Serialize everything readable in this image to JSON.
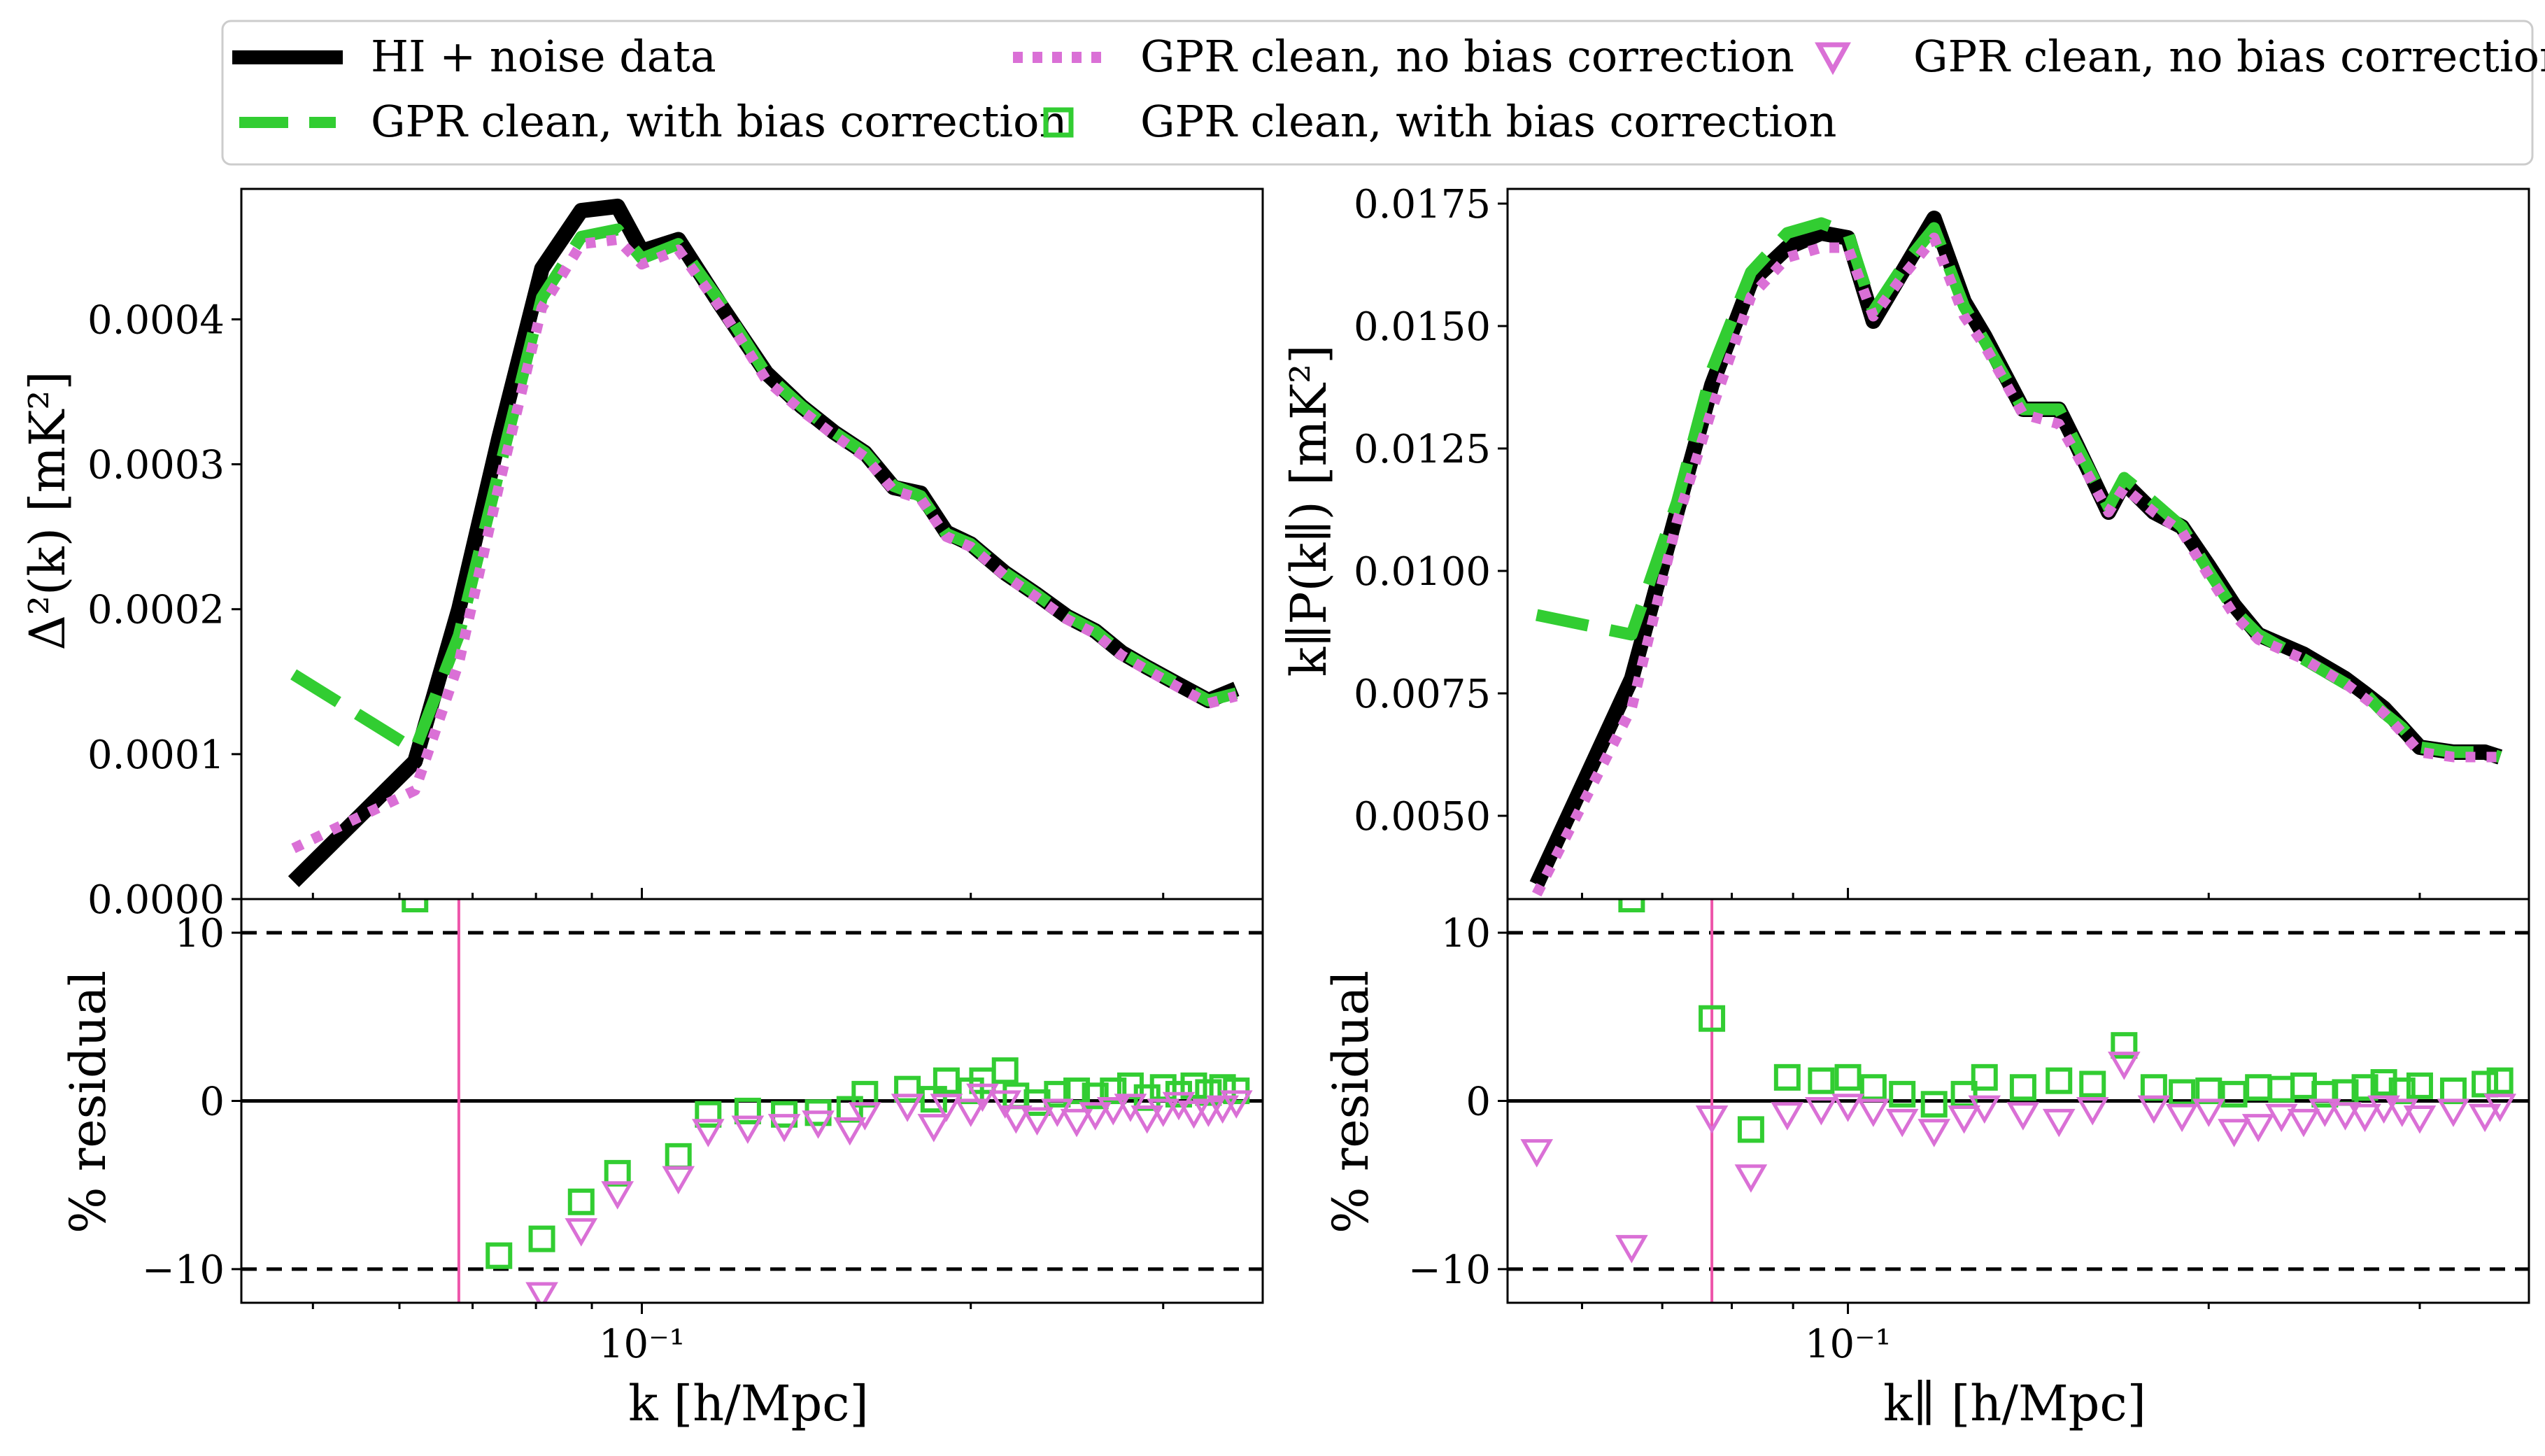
{
  "legend": {
    "entries": [
      {
        "label": "HI + noise data",
        "style": "line-solid",
        "color": "#000000"
      },
      {
        "label": "GPR clean, with bias correction",
        "style": "line-dashed",
        "color": "#32cd32"
      },
      {
        "label": "GPR clean, no bias correction",
        "style": "line-dotted",
        "color": "#da70d6"
      },
      {
        "label": "GPR clean, with bias correction",
        "style": "marker-square",
        "color": "#32cd32"
      },
      {
        "label": "GPR clean, no bias correction",
        "style": "marker-triangle-down",
        "color": "#da70d6"
      }
    ]
  },
  "colors": {
    "data": "#000000",
    "with_bias": "#32cd32",
    "no_bias": "#da70d6",
    "vline": "#ee55aa"
  },
  "chart_data": [
    {
      "type": "line",
      "panel": "left",
      "xlabel": "k [h/Mpc]",
      "ylabel": "Δ²(k) [mK²]",
      "residual_ylabel": "% residual",
      "xscale": "log",
      "xlim": [
        0.043,
        0.37
      ],
      "ylim": [
        0,
        0.00049
      ],
      "residual_ylim": [
        -12,
        12
      ],
      "xtick_labels": [
        {
          "value": 0.1,
          "label": "10⁻¹"
        }
      ],
      "ytick_labels": [
        "0.0000",
        "0.0001",
        "0.0002",
        "0.0003",
        "0.0004"
      ],
      "residual_ytick_labels": [
        "−10",
        "0",
        "10"
      ],
      "residual_reference_lines": [
        -10,
        0,
        10
      ],
      "vline_x": 0.068,
      "x": [
        0.048,
        0.062,
        0.068,
        0.074,
        0.081,
        0.088,
        0.095,
        0.1,
        0.108,
        0.118,
        0.13,
        0.14,
        0.15,
        0.16,
        0.17,
        0.18,
        0.19,
        0.2,
        0.215,
        0.23,
        0.245,
        0.26,
        0.275,
        0.29,
        0.31,
        0.33,
        0.35
      ],
      "series": [
        {
          "name": "HI + noise data",
          "values": [
            1.2e-05,
            9.5e-05,
            0.0002,
            0.000318,
            0.000435,
            0.000475,
            0.000478,
            0.000447,
            0.000455,
            0.00041,
            0.000363,
            0.00034,
            0.000322,
            0.000308,
            0.000284,
            0.00028,
            0.000253,
            0.000245,
            0.000225,
            0.00021,
            0.000195,
            0.000185,
            0.00017,
            0.00016,
            0.000148,
            0.000137,
            0.000145
          ]
        },
        {
          "name": "GPR clean, with bias correction",
          "values": [
            0.000155,
            0.000103,
            0.000182,
            0.000295,
            0.000415,
            0.000457,
            0.000462,
            0.000442,
            0.000452,
            0.000412,
            0.000362,
            0.00034,
            0.000322,
            0.000308,
            0.000285,
            0.000278,
            0.000252,
            0.000245,
            0.000225,
            0.00021,
            0.000195,
            0.000185,
            0.00017,
            0.00016,
            0.000148,
            0.000137,
            0.000142
          ]
        },
        {
          "name": "GPR clean, no bias correction",
          "values": [
            3.5e-05,
            7.5e-05,
            0.000163,
            0.000285,
            0.000408,
            0.000452,
            0.000455,
            0.000438,
            0.000448,
            0.000408,
            0.000358,
            0.000337,
            0.00032,
            0.000305,
            0.000282,
            0.000276,
            0.00025,
            0.000243,
            0.000223,
            0.000208,
            0.000193,
            0.000183,
            0.000168,
            0.000158,
            0.000146,
            0.000135,
            0.00014
          ]
        }
      ],
      "residual_series": [
        {
          "name": "GPR clean, with bias correction",
          "marker": "square",
          "x": [
            0.062,
            0.074,
            0.081,
            0.088,
            0.095,
            0.108,
            0.115,
            0.125,
            0.135,
            0.145,
            0.155,
            0.16,
            0.175,
            0.185,
            0.19,
            0.2,
            0.205,
            0.215,
            0.22,
            0.23,
            0.24,
            0.25,
            0.26,
            0.27,
            0.28,
            0.29,
            0.3,
            0.31,
            0.32,
            0.33,
            0.34,
            0.35
          ],
          "values": [
            12,
            -9.2,
            -8.2,
            -6,
            -4.3,
            -3.3,
            -0.8,
            -0.6,
            -0.8,
            -0.7,
            -0.5,
            0.4,
            0.7,
            0.1,
            1.2,
            0.6,
            1.2,
            1.8,
            0.3,
            -0.1,
            0.4,
            0.6,
            0.3,
            0.6,
            0.9,
            0.2,
            0.8,
            0.4,
            0.9,
            0.5,
            0.8,
            0.6
          ]
        },
        {
          "name": "GPR clean, no bias correction",
          "marker": "triangle-down",
          "x": [
            0.081,
            0.088,
            0.095,
            0.108,
            0.115,
            0.125,
            0.135,
            0.145,
            0.155,
            0.16,
            0.175,
            0.185,
            0.19,
            0.2,
            0.205,
            0.215,
            0.22,
            0.23,
            0.24,
            0.25,
            0.26,
            0.27,
            0.28,
            0.29,
            0.3,
            0.31,
            0.32,
            0.33,
            0.34,
            0.35
          ],
          "values": [
            -11.5,
            -7.7,
            -5.5,
            -4.6,
            -1.8,
            -1.6,
            -1.5,
            -1.3,
            -1.7,
            -0.8,
            -0.3,
            -1.5,
            -0.3,
            -0.6,
            0.3,
            -0.1,
            -1.0,
            -1.1,
            -0.6,
            -1.2,
            -0.8,
            -0.5,
            -0.3,
            -1.0,
            -0.6,
            -0.2,
            -0.7,
            -0.6,
            -0.4,
            -0.1
          ]
        }
      ]
    },
    {
      "type": "line",
      "panel": "right",
      "xlabel": "k∥ [h/Mpc]",
      "ylabel": "k∥P(k∥) [mK²]",
      "residual_ylabel": "% residual",
      "xscale": "log",
      "xlim": [
        0.052,
        0.37
      ],
      "ylim": [
        0.0033,
        0.0178
      ],
      "residual_ylim": [
        -12,
        12
      ],
      "xtick_labels": [
        {
          "value": 0.1,
          "label": "10⁻¹"
        }
      ],
      "ytick_labels": [
        "0.0050",
        "0.0075",
        "0.0100",
        "0.0125",
        "0.0150",
        "0.0175"
      ],
      "residual_ytick_labels": [
        "−10",
        "0",
        "10"
      ],
      "residual_reference_lines": [
        -10,
        0,
        10
      ],
      "vline_x": 0.077,
      "x": [
        0.055,
        0.066,
        0.072,
        0.077,
        0.083,
        0.089,
        0.095,
        0.1,
        0.105,
        0.111,
        0.118,
        0.125,
        0.13,
        0.14,
        0.15,
        0.155,
        0.165,
        0.17,
        0.18,
        0.19,
        0.2,
        0.21,
        0.22,
        0.24,
        0.26,
        0.27,
        0.28,
        0.29,
        0.3,
        0.32,
        0.34,
        0.35
      ],
      "series": [
        {
          "name": "HI + noise data",
          "values": [
            0.0036,
            0.0078,
            0.0112,
            0.0138,
            0.0159,
            0.0166,
            0.0169,
            0.0168,
            0.0151,
            0.0161,
            0.0172,
            0.0155,
            0.0148,
            0.0133,
            0.0133,
            0.0126,
            0.0112,
            0.0118,
            0.0112,
            0.0109,
            0.0101,
            0.0093,
            0.0087,
            0.0083,
            0.0078,
            0.0075,
            0.0072,
            0.0068,
            0.0064,
            0.0063,
            0.0063,
            0.0062
          ]
        },
        {
          "name": "GPR clean, with bias correction",
          "values": [
            0.0091,
            0.0087,
            0.0114,
            0.0141,
            0.0161,
            0.0169,
            0.0171,
            0.0169,
            0.0153,
            0.0162,
            0.017,
            0.0154,
            0.0147,
            0.0133,
            0.0133,
            0.0126,
            0.0113,
            0.0119,
            0.0114,
            0.0109,
            0.01,
            0.0092,
            0.0087,
            0.0082,
            0.0077,
            0.0075,
            0.0071,
            0.0068,
            0.0064,
            0.0063,
            0.0063,
            0.0062
          ]
        },
        {
          "name": "GPR clean, no bias correction",
          "values": [
            0.0034,
            0.0072,
            0.011,
            0.0133,
            0.0156,
            0.0164,
            0.0166,
            0.0166,
            0.0152,
            0.016,
            0.0168,
            0.0152,
            0.0146,
            0.0132,
            0.013,
            0.0124,
            0.0112,
            0.0117,
            0.0112,
            0.0108,
            0.0099,
            0.0091,
            0.0086,
            0.0082,
            0.0077,
            0.0074,
            0.0071,
            0.0067,
            0.0063,
            0.0062,
            0.0062,
            0.0062
          ]
        }
      ],
      "residual_series": [
        {
          "name": "GPR clean, with bias correction",
          "marker": "square",
          "x": [
            0.066,
            0.077,
            0.083,
            0.089,
            0.095,
            0.1,
            0.105,
            0.111,
            0.118,
            0.125,
            0.13,
            0.14,
            0.15,
            0.16,
            0.17,
            0.18,
            0.19,
            0.2,
            0.21,
            0.22,
            0.23,
            0.24,
            0.25,
            0.26,
            0.27,
            0.28,
            0.29,
            0.3,
            0.32,
            0.34,
            0.35
          ],
          "values": [
            12,
            4.9,
            -1.7,
            1.4,
            1.2,
            1.4,
            0.8,
            0.4,
            -0.2,
            0.4,
            1.4,
            0.8,
            1.2,
            1.0,
            3.3,
            0.8,
            0.5,
            0.6,
            0.4,
            0.8,
            0.7,
            0.9,
            0.4,
            0.5,
            0.8,
            1.1,
            0.6,
            0.9,
            0.6,
            1.0,
            1.2
          ]
        },
        {
          "name": "GPR clean, no bias correction",
          "marker": "triangle-down",
          "x": [
            0.055,
            0.066,
            0.077,
            0.083,
            0.089,
            0.095,
            0.1,
            0.105,
            0.111,
            0.118,
            0.125,
            0.13,
            0.14,
            0.15,
            0.16,
            0.17,
            0.18,
            0.19,
            0.2,
            0.21,
            0.22,
            0.23,
            0.24,
            0.25,
            0.26,
            0.27,
            0.28,
            0.29,
            0.3,
            0.32,
            0.34,
            0.35
          ],
          "values": [
            -3,
            -8.7,
            -1.0,
            -4.5,
            -0.8,
            -0.5,
            -0.3,
            -0.6,
            -1.2,
            -1.8,
            -1.0,
            -0.4,
            -0.8,
            -1.2,
            -0.5,
            2.2,
            -0.4,
            -0.9,
            -0.6,
            -1.8,
            -1.5,
            -0.9,
            -1.2,
            -0.6,
            -0.8,
            -0.9,
            -0.4,
            -0.6,
            -1.0,
            -0.6,
            -0.9,
            -0.3
          ]
        }
      ]
    }
  ]
}
